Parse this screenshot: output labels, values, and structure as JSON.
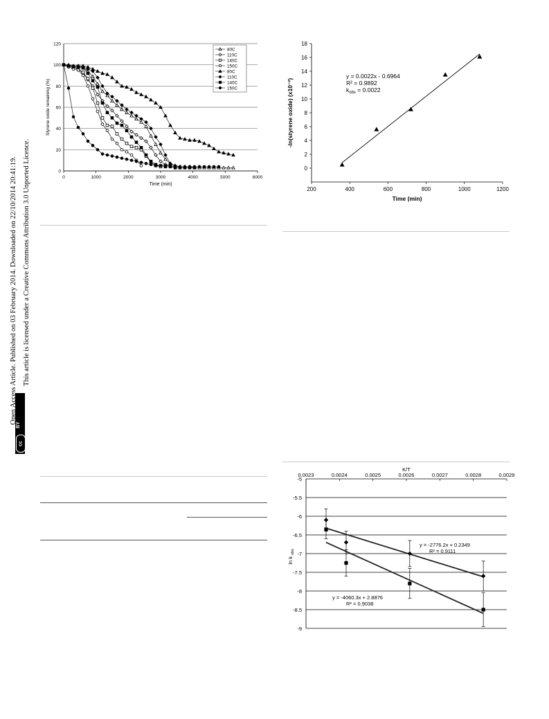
{
  "sidebar": {
    "line1": "Open Access Article. Published on 03 February 2014. Downloaded on 22/10/2014 20:41:19.",
    "line2": "This article is licensed under a Creative Commons Attribution 3.0 Unported Licence.",
    "badge_cc": "cc",
    "badge_by": "BY"
  },
  "chart_data": [
    {
      "type": "line",
      "title": "",
      "xlabel": "Time (min)",
      "ylabel": "Styrene oxide remaining (%)",
      "xlim": [
        0,
        6000
      ],
      "ylim": [
        0,
        120
      ],
      "xticks": [
        "0",
        "1000",
        "2000",
        "3000",
        "4000",
        "5000",
        "6000"
      ],
      "yticks": [
        "0",
        "20",
        "40",
        "60",
        "80",
        "100",
        "120"
      ],
      "grid": "horizontal",
      "legend_position": "top-right",
      "series": [
        {
          "name": "80C",
          "marker": "triangle-open",
          "x": [
            0,
            150,
            300,
            450,
            600,
            750,
            900,
            1050,
            1200,
            1350,
            1500,
            1650,
            1800,
            1950,
            2100,
            2250,
            2400,
            2550,
            2700,
            2850,
            3000,
            3150,
            3300,
            3450,
            3600,
            3750,
            3900,
            4050,
            4200,
            4350,
            4500,
            4650,
            4800,
            4950,
            5100,
            5250
          ],
          "y": [
            100,
            99,
            98,
            98,
            97,
            94,
            89,
            82,
            75,
            71,
            66,
            62,
            58,
            55,
            52,
            49,
            46,
            42,
            33,
            25,
            17,
            11,
            7,
            5,
            4,
            4,
            4,
            3,
            3,
            3,
            3,
            3,
            3,
            3,
            3,
            3
          ]
        },
        {
          "name": "110C",
          "marker": "diamond-open",
          "x": [
            0,
            150,
            300,
            450,
            600,
            750,
            900,
            1050,
            1200,
            1350,
            1500,
            1650,
            1800,
            1950,
            2100,
            2250,
            2400,
            2550,
            2700,
            2850,
            3000,
            3150,
            3300,
            3450,
            3600
          ],
          "y": [
            100,
            99,
            98,
            96,
            92,
            86,
            80,
            72,
            66,
            61,
            57,
            52,
            47,
            42,
            37,
            34,
            31,
            28,
            22,
            15,
            9,
            6,
            5,
            4,
            4
          ]
        },
        {
          "name": "140C",
          "marker": "square-open",
          "x": [
            0,
            150,
            300,
            450,
            600,
            750,
            900,
            1050,
            1200,
            1350,
            1500,
            1650,
            1800,
            1950,
            2100,
            2250,
            2400,
            2550,
            2700,
            2850,
            3000
          ],
          "y": [
            100,
            99,
            98,
            96,
            93,
            87,
            78,
            64,
            50,
            43,
            42,
            35,
            30,
            26,
            23,
            22,
            20,
            14,
            8,
            5,
            4
          ]
        },
        {
          "name": "150C",
          "marker": "circle-open",
          "x": [
            0,
            150,
            300,
            450,
            600,
            750,
            900,
            1050,
            1200,
            1350,
            1500,
            1650,
            1800,
            1950,
            2100,
            2250,
            2400
          ],
          "y": [
            100,
            98,
            96,
            95,
            90,
            80,
            68,
            56,
            44,
            38,
            30,
            26,
            20,
            18,
            15,
            10,
            5
          ]
        },
        {
          "name": "80C",
          "marker": "triangle-filled",
          "x": [
            0,
            150,
            300,
            450,
            600,
            750,
            900,
            1050,
            1200,
            1350,
            1500,
            1650,
            1800,
            1950,
            2100,
            2250,
            2400,
            2550,
            2700,
            2850,
            3000,
            3150,
            3300,
            3450,
            3600,
            3750,
            3900,
            4050,
            4200,
            4350,
            4500,
            4650,
            4800,
            4950,
            5100,
            5250
          ],
          "y": [
            100,
            100,
            99,
            99,
            99,
            98,
            96,
            94,
            92,
            91,
            88,
            84,
            80,
            79,
            77,
            74,
            72,
            70,
            67,
            64,
            60,
            52,
            43,
            36,
            31,
            30,
            29,
            29,
            28,
            26,
            24,
            21,
            18,
            17,
            16,
            15
          ]
        },
        {
          "name": "110C",
          "marker": "diamond-filled",
          "x": [
            0,
            150,
            300,
            450,
            600,
            750,
            900,
            1050,
            1200,
            1350,
            1500,
            1650,
            1800,
            1950,
            2100,
            2250,
            2400,
            2550,
            2700,
            2850,
            3000,
            3150,
            3300,
            3450
          ],
          "y": [
            100,
            99,
            99,
            99,
            98,
            96,
            94,
            88,
            80,
            73,
            70,
            66,
            62,
            58,
            55,
            52,
            49,
            46,
            40,
            32,
            25,
            15,
            7,
            5
          ]
        },
        {
          "name": "140C",
          "marker": "square-filled",
          "x": [
            0,
            150,
            300,
            450,
            600,
            750,
            900,
            1050,
            1200,
            1350,
            1500,
            1650,
            1800,
            1950,
            2100,
            2250,
            2400,
            2550,
            2700,
            2850,
            3000,
            3150,
            3300,
            3450,
            3600,
            3750,
            3900,
            4050
          ],
          "y": [
            100,
            99,
            98,
            98,
            97,
            92,
            85,
            79,
            64,
            55,
            50,
            45,
            43,
            38,
            32,
            27,
            22,
            15,
            9,
            6,
            5,
            4,
            4,
            3,
            3,
            3,
            3,
            3
          ]
        },
        {
          "name": "150C",
          "marker": "circle-filled",
          "x": [
            0,
            150,
            300,
            450,
            600,
            750,
            900,
            1050,
            1200,
            1350,
            1500,
            1650,
            1800,
            1950,
            2100,
            2250,
            2400,
            2550,
            2700,
            2850,
            3000,
            3150,
            3300,
            3450,
            3600,
            3750,
            3900,
            4050,
            4200,
            4350,
            4500,
            4650,
            4800
          ],
          "y": [
            100,
            78,
            51,
            41,
            35,
            28,
            24,
            20,
            16,
            15,
            14,
            13,
            12,
            11,
            10,
            9,
            8,
            7,
            6,
            5,
            5,
            5,
            5,
            4,
            4,
            4,
            4,
            4,
            4,
            4,
            4,
            4,
            4
          ]
        }
      ]
    },
    {
      "type": "scatter",
      "title": "",
      "xlabel": "Time (min)",
      "ylabel": "-ln(styrene oxide) (x10⁻²)",
      "xlim": [
        200,
        1200
      ],
      "ylim": [
        -2,
        18
      ],
      "xticks": [
        "200",
        "400",
        "600",
        "800",
        "1000",
        "1200"
      ],
      "yticks": [
        "0",
        "2",
        "4",
        "6",
        "8",
        "10",
        "12",
        "14",
        "16",
        "18"
      ],
      "grid": "none",
      "x": [
        360,
        540,
        720,
        900,
        1080
      ],
      "y": [
        0.5,
        5.6,
        8.5,
        13.5,
        16.1
      ],
      "fit": {
        "x": [
          360,
          1080
        ],
        "y": [
          0.8,
          16.5
        ]
      },
      "annotation": {
        "line1": "y = 0.0022x - 0.6964",
        "line2": "R²  = 0.9892",
        "line3_prefix": "k",
        "line3_sub": "obs",
        "line3_suffix": " = 0.0022"
      }
    },
    {
      "type": "scatter",
      "title": "K/T",
      "xlabel": "",
      "ylabel": "ln k",
      "ylabel_sub": "obs",
      "xlim": [
        0.0023,
        0.0029
      ],
      "ylim": [
        -9,
        -5
      ],
      "xticks": [
        "0.0023",
        "0.0024",
        "0.0025",
        "0.0026",
        "0.0027",
        "0.0028",
        "0.0029"
      ],
      "yticks": [
        "-5",
        "-5.5",
        "-6",
        "-6.5",
        "-7",
        "-7.5",
        "-8",
        "-8.5",
        "-9"
      ],
      "grid": "horizontal",
      "x_axis_position": "top",
      "series": [
        {
          "name": "",
          "marker": "diamond-filled",
          "x": [
            0.00236,
            0.00242,
            0.00261,
            0.00283
          ],
          "y": [
            -6.1,
            -6.7,
            -7.0,
            -7.6
          ],
          "err": [
            0.3,
            0.3,
            0.35,
            0.4
          ],
          "fit": {
            "x": [
              0.00236,
              0.00283
            ],
            "y": [
              -6.32,
              -7.62
            ]
          }
        },
        {
          "name": "",
          "marker": "square-filled",
          "x": [
            0.00236,
            0.00242,
            0.00261,
            0.00283
          ],
          "y": [
            -6.35,
            -7.25,
            -7.8,
            -8.5
          ],
          "err": [
            0.25,
            0.35,
            0.4,
            0.45
          ],
          "fit": {
            "x": [
              0.00236,
              0.00283
            ],
            "y": [
              -6.7,
              -8.6
            ]
          }
        }
      ],
      "annotations": [
        {
          "line1": "y = -2776.2x + 0.2349",
          "line2": "R² = 0.9111"
        },
        {
          "line1": "y = -4060.3x + 2.8876",
          "line2": "R² = 0.9038"
        }
      ]
    }
  ]
}
